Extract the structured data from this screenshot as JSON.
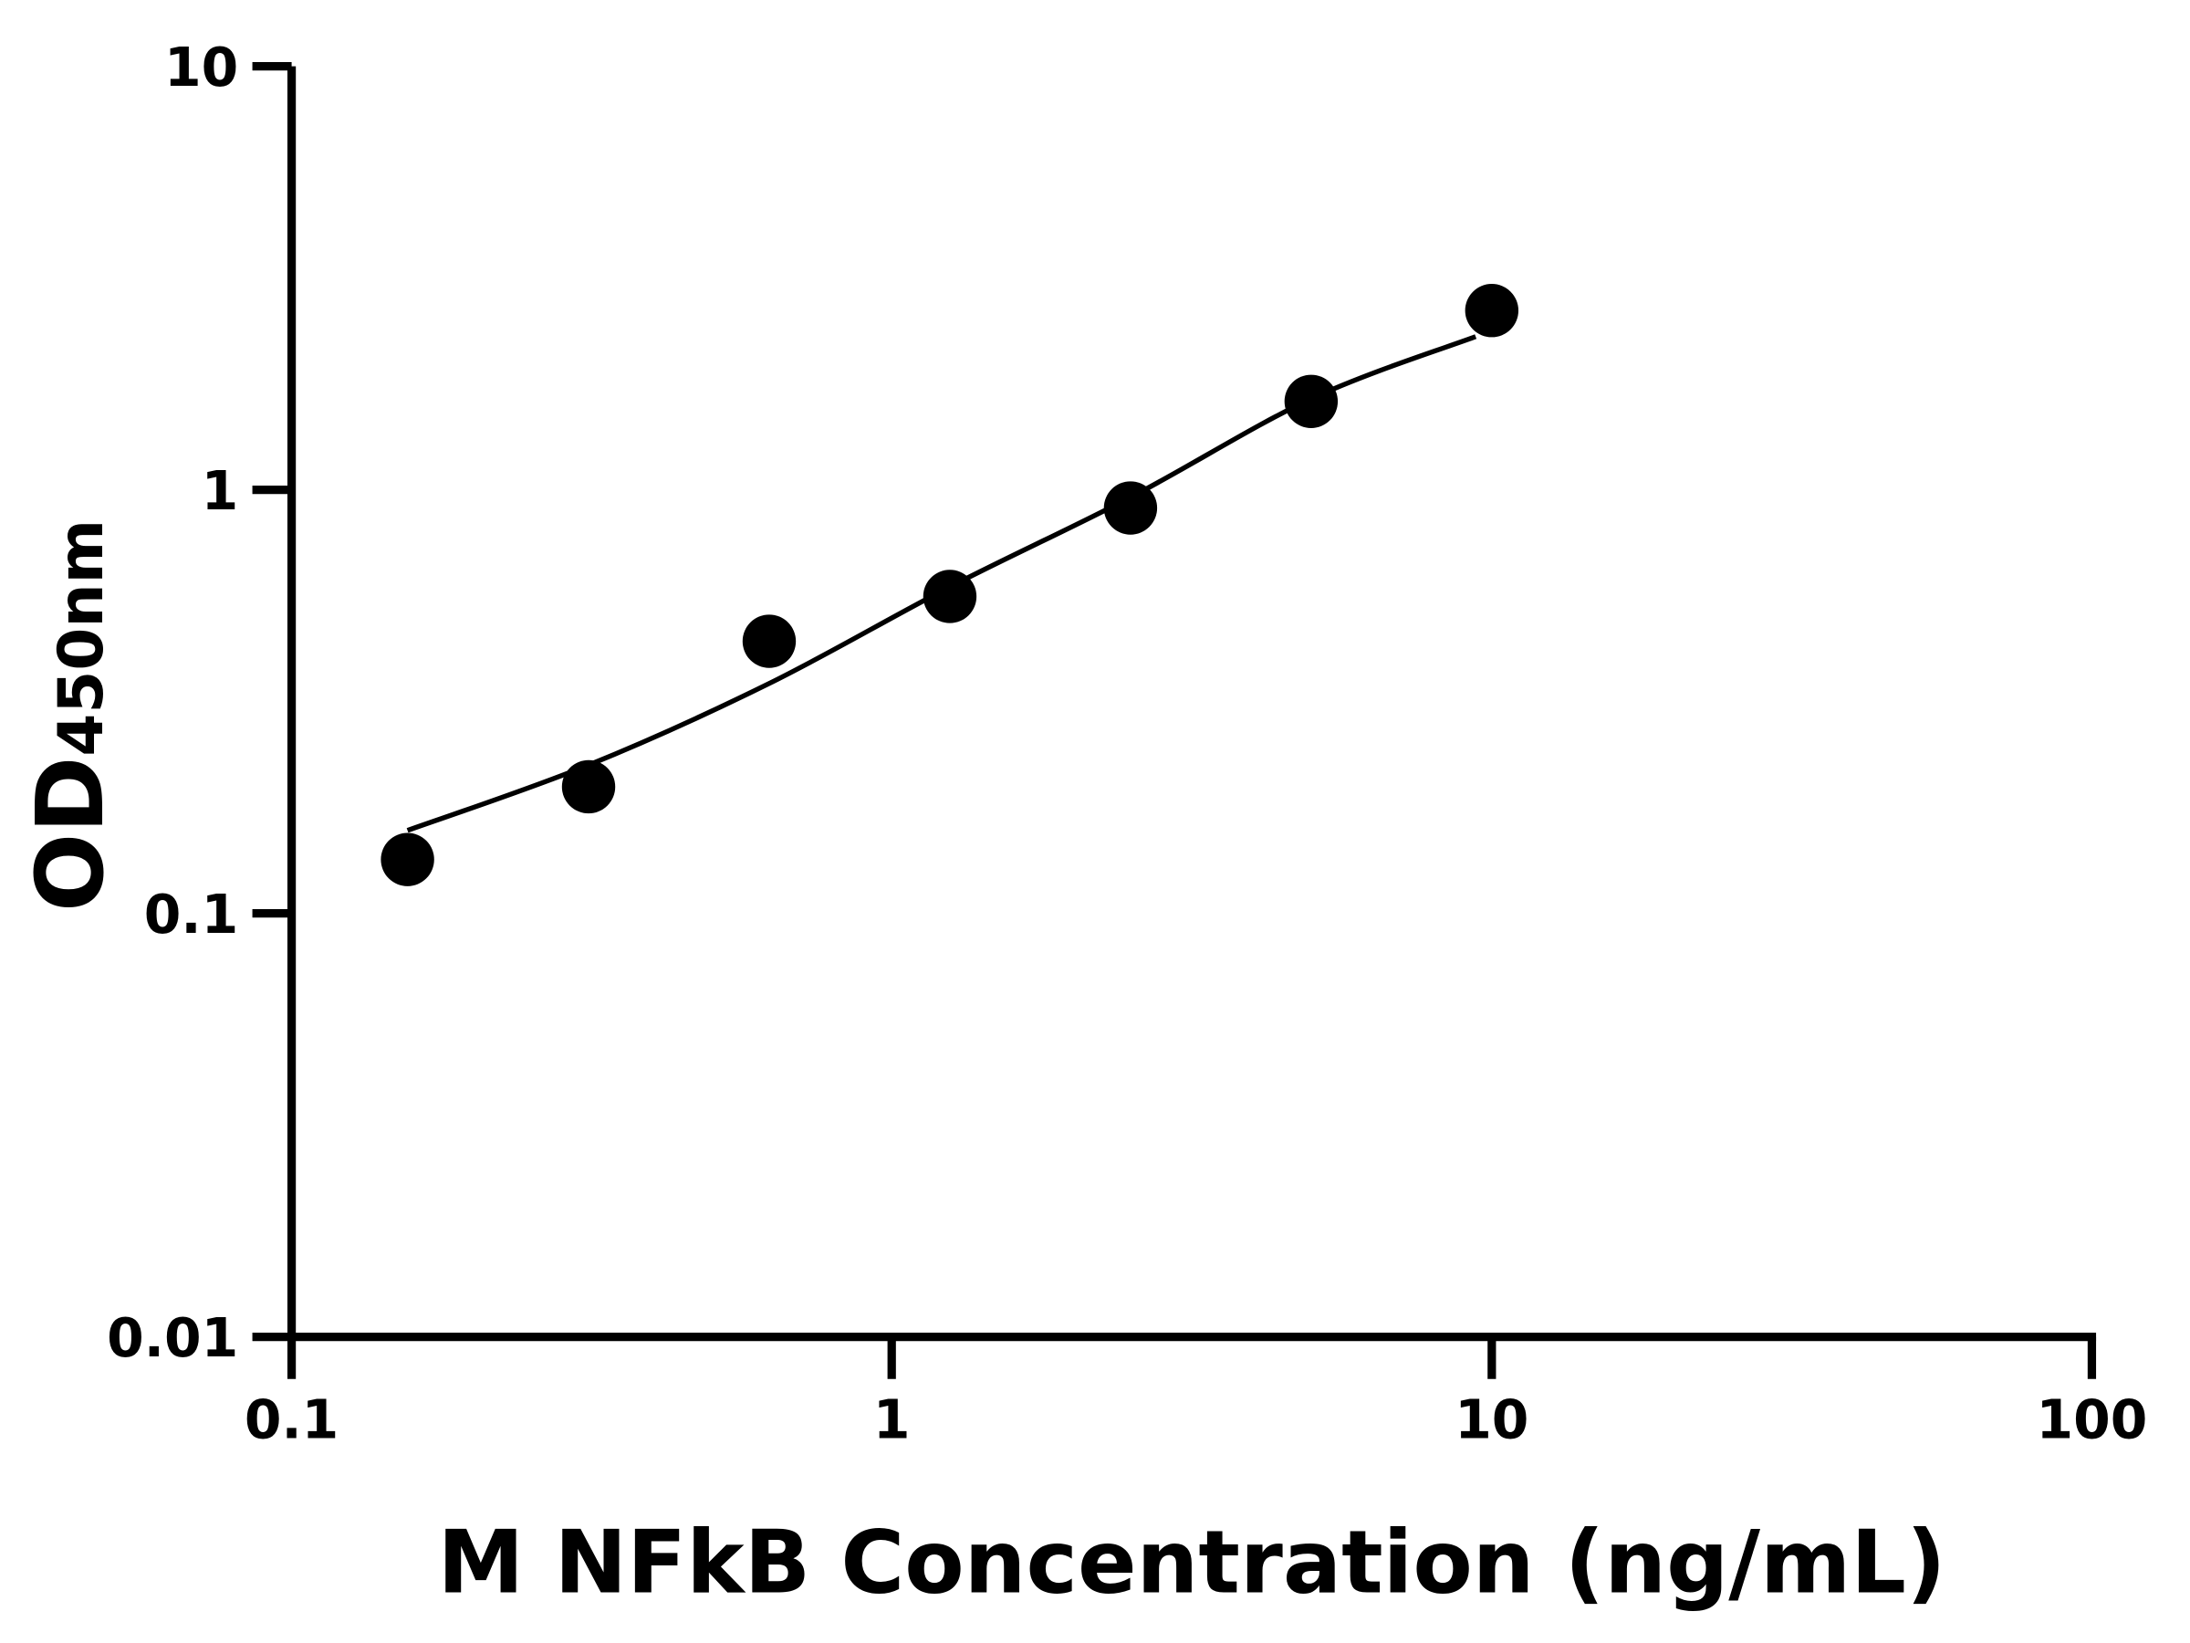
{
  "chart_data": {
    "type": "scatter",
    "title": "",
    "xlabel": "M NFkB Concentration (ng/mL)",
    "ylabel_main": "OD",
    "ylabel_sub": "450nm",
    "x_scale": "log",
    "y_scale": "log",
    "xlim": [
      0.1,
      100
    ],
    "ylim": [
      0.01,
      10
    ],
    "x_ticks": [
      {
        "value": 0.1,
        "label": "0.1"
      },
      {
        "value": 1,
        "label": "1"
      },
      {
        "value": 10,
        "label": "10"
      },
      {
        "value": 100,
        "label": "100"
      }
    ],
    "y_ticks": [
      {
        "value": 0.01,
        "label": "0.01"
      },
      {
        "value": 0.1,
        "label": "0.1"
      },
      {
        "value": 1,
        "label": "1"
      },
      {
        "value": 10,
        "label": "10"
      }
    ],
    "grid": false,
    "legend": "none",
    "points": {
      "x": [
        0.156,
        0.3125,
        0.625,
        1.25,
        2.5,
        5,
        10
      ],
      "y": [
        0.134,
        0.199,
        0.439,
        0.56,
        0.906,
        1.617,
        2.65
      ]
    },
    "fit_curve": {
      "x": [
        0.156,
        0.3125,
        0.625,
        1.25,
        2.5,
        5,
        9.4
      ],
      "y": [
        0.157,
        0.224,
        0.349,
        0.59,
        0.96,
        1.64,
        2.3
      ]
    },
    "color": "#000000"
  }
}
